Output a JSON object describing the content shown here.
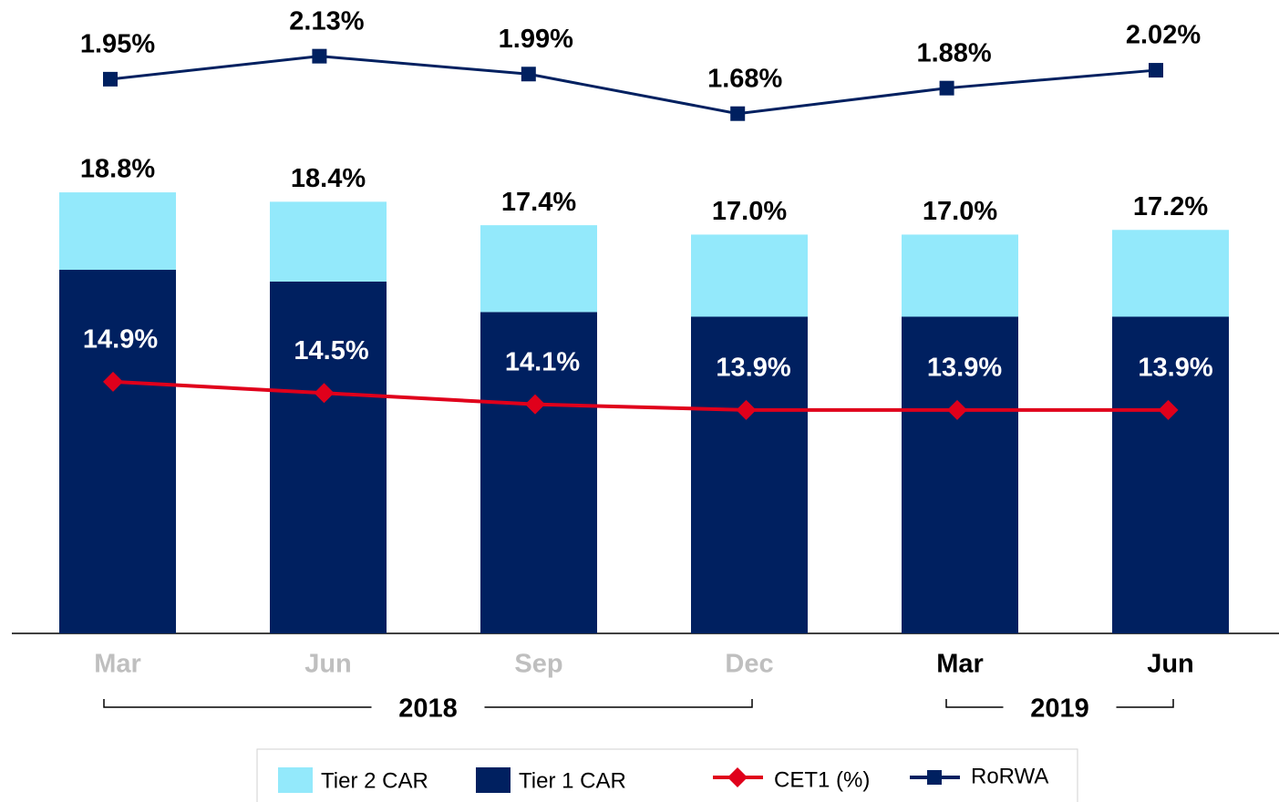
{
  "chart_data": {
    "type": "bar",
    "categories": [
      "Mar",
      "Jun",
      "Sep",
      "Dec",
      "Mar",
      "Jun"
    ],
    "category_colors": [
      "#bfbfbf",
      "#bfbfbf",
      "#bfbfbf",
      "#bfbfbf",
      "#000000",
      "#000000"
    ],
    "groups": [
      {
        "label": "2018",
        "start": 0,
        "end": 3
      },
      {
        "label": "2019",
        "start": 4,
        "end": 5
      }
    ],
    "ylim": [
      0,
      27
    ],
    "y2lim": [
      6,
      28.4
    ],
    "y3lim": [
      -2.39,
      2.57
    ],
    "series": [
      {
        "name": "Tier 1 CAR",
        "color": "#002060",
        "values": [
          15.5,
          15.0,
          13.7,
          13.5,
          13.5,
          13.5
        ]
      },
      {
        "name": "Tier 2 CAR",
        "color": "#93e9fb",
        "values": [
          3.3,
          3.4,
          3.7,
          3.5,
          3.5,
          3.7
        ]
      },
      {
        "name": "CET1 (%)",
        "type": "line",
        "axis": "y2",
        "color": "#e0001b",
        "marker": "diamond",
        "values": [
          14.9,
          14.5,
          14.1,
          13.9,
          13.9,
          13.9
        ],
        "value_labels": [
          "14.9%",
          "14.5%",
          "14.1%",
          "13.9%",
          "13.9%",
          "13.9%"
        ]
      },
      {
        "name": "RoRWA",
        "type": "line",
        "axis": "y3",
        "color": "#002060",
        "marker": "square",
        "values": [
          1.95,
          2.13,
          1.99,
          1.68,
          1.88,
          2.02
        ],
        "value_labels": [
          "1.95%",
          "2.13%",
          "1.99%",
          "1.68%",
          "1.88%",
          "2.02%"
        ]
      }
    ],
    "totals": [
      18.8,
      18.4,
      17.4,
      17.0,
      17.0,
      17.2
    ],
    "total_labels": [
      "18.8%",
      "18.4%",
      "17.4%",
      "17.0%",
      "17.0%",
      "17.2%"
    ],
    "legend": "bottom"
  }
}
